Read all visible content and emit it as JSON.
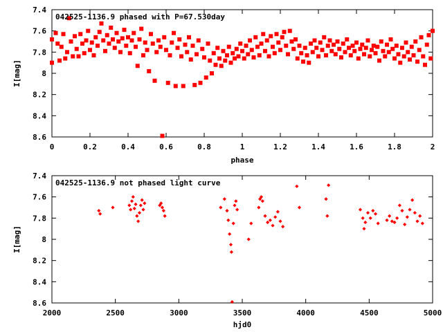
{
  "chart_data": [
    {
      "type": "scatter",
      "title": "042525-1136.9 phased with P=67.530day",
      "xlabel": "phase",
      "ylabel": "I[mag]",
      "xlim": [
        0,
        2
      ],
      "ylim": [
        8.6,
        7.4
      ],
      "y_inverted": true,
      "x_ticks": [
        "0",
        "0.2",
        "0.4",
        "0.6",
        "0.8",
        "1",
        "1.2",
        "1.4",
        "1.6",
        "1.8",
        "2"
      ],
      "x_tick_values": [
        0,
        0.2,
        0.4,
        0.6,
        0.8,
        1,
        1.2,
        1.4,
        1.6,
        1.8,
        2
      ],
      "y_ticks": [
        "7.4",
        "7.6",
        "7.8",
        "8",
        "8.2",
        "8.4",
        "8.6"
      ],
      "y_tick_values": [
        7.4,
        7.6,
        7.8,
        8.0,
        8.2,
        8.4,
        8.6
      ],
      "marker": "square",
      "color": "#ff0000",
      "points": [
        [
          0.0,
          7.68
        ],
        [
          0.0,
          7.9
        ],
        [
          0.02,
          7.62
        ],
        [
          0.03,
          7.72
        ],
        [
          0.04,
          7.88
        ],
        [
          0.05,
          7.75
        ],
        [
          0.06,
          7.63
        ],
        [
          0.07,
          7.86
        ],
        [
          0.08,
          7.8
        ],
        [
          0.09,
          7.48
        ],
        [
          0.1,
          7.7
        ],
        [
          0.11,
          7.84
        ],
        [
          0.12,
          7.65
        ],
        [
          0.13,
          7.77
        ],
        [
          0.14,
          7.84
        ],
        [
          0.15,
          7.63
        ],
        [
          0.16,
          7.72
        ],
        [
          0.17,
          7.81
        ],
        [
          0.18,
          7.69
        ],
        [
          0.19,
          7.6
        ],
        [
          0.2,
          7.78
        ],
        [
          0.21,
          7.71
        ],
        [
          0.22,
          7.83
        ],
        [
          0.23,
          7.66
        ],
        [
          0.24,
          7.74
        ],
        [
          0.25,
          7.61
        ],
        [
          0.26,
          7.53
        ],
        [
          0.27,
          7.69
        ],
        [
          0.28,
          7.79
        ],
        [
          0.29,
          7.64
        ],
        [
          0.3,
          7.72
        ],
        [
          0.31,
          7.57
        ],
        [
          0.32,
          7.68
        ],
        [
          0.33,
          7.76
        ],
        [
          0.34,
          7.62
        ],
        [
          0.35,
          7.7
        ],
        [
          0.36,
          7.8
        ],
        [
          0.37,
          7.67
        ],
        [
          0.38,
          7.59
        ],
        [
          0.39,
          7.74
        ],
        [
          0.4,
          7.66
        ],
        [
          0.41,
          7.81
        ],
        [
          0.42,
          7.69
        ],
        [
          0.43,
          7.62
        ],
        [
          0.44,
          7.75
        ],
        [
          0.45,
          7.93
        ],
        [
          0.46,
          7.68
        ],
        [
          0.47,
          7.58
        ],
        [
          0.48,
          7.83
        ],
        [
          0.49,
          7.71
        ],
        [
          0.5,
          7.78
        ],
        [
          0.51,
          7.98
        ],
        [
          0.52,
          7.63
        ],
        [
          0.53,
          7.72
        ],
        [
          0.54,
          8.07
        ],
        [
          0.55,
          7.8
        ],
        [
          0.56,
          7.69
        ],
        [
          0.57,
          7.75
        ],
        [
          0.58,
          8.59
        ],
        [
          0.59,
          7.66
        ],
        [
          0.6,
          7.78
        ],
        [
          0.61,
          8.09
        ],
        [
          0.62,
          7.83
        ],
        [
          0.63,
          7.71
        ],
        [
          0.64,
          7.62
        ],
        [
          0.65,
          8.12
        ],
        [
          0.66,
          7.76
        ],
        [
          0.67,
          7.68
        ],
        [
          0.68,
          7.84
        ],
        [
          0.69,
          8.12
        ],
        [
          0.7,
          7.73
        ],
        [
          0.71,
          7.8
        ],
        [
          0.72,
          7.66
        ],
        [
          0.73,
          7.87
        ],
        [
          0.74,
          7.74
        ],
        [
          0.75,
          8.11
        ],
        [
          0.76,
          7.82
        ],
        [
          0.77,
          7.69
        ],
        [
          0.78,
          8.09
        ],
        [
          0.79,
          7.77
        ],
        [
          0.8,
          7.85
        ],
        [
          0.81,
          8.04
        ],
        [
          0.82,
          7.72
        ],
        [
          0.83,
          7.88
        ],
        [
          0.84,
          8.0
        ],
        [
          0.85,
          7.81
        ],
        [
          0.86,
          7.92
        ],
        [
          0.87,
          7.76
        ],
        [
          0.88,
          7.86
        ],
        [
          0.89,
          7.93
        ],
        [
          0.9,
          7.79
        ],
        [
          0.91,
          7.88
        ],
        [
          0.92,
          7.83
        ],
        [
          0.93,
          7.75
        ],
        [
          0.94,
          7.9
        ],
        [
          0.95,
          7.81
        ],
        [
          0.96,
          7.86
        ],
        [
          0.97,
          7.77
        ],
        [
          0.98,
          7.84
        ],
        [
          0.99,
          7.72
        ],
        [
          1.0,
          7.79
        ],
        [
          1.01,
          7.86
        ],
        [
          1.02,
          7.74
        ],
        [
          1.03,
          7.82
        ],
        [
          1.04,
          7.69
        ],
        [
          1.05,
          7.78
        ],
        [
          1.06,
          7.85
        ],
        [
          1.07,
          7.66
        ],
        [
          1.08,
          7.75
        ],
        [
          1.09,
          7.83
        ],
        [
          1.1,
          7.72
        ],
        [
          1.11,
          7.63
        ],
        [
          1.12,
          7.79
        ],
        [
          1.13,
          7.69
        ],
        [
          1.14,
          7.84
        ],
        [
          1.15,
          7.65
        ],
        [
          1.16,
          7.75
        ],
        [
          1.17,
          7.81
        ],
        [
          1.18,
          7.63
        ],
        [
          1.19,
          7.71
        ],
        [
          1.2,
          7.78
        ],
        [
          1.21,
          7.66
        ],
        [
          1.22,
          7.61
        ],
        [
          1.23,
          7.74
        ],
        [
          1.24,
          7.82
        ],
        [
          1.25,
          7.6
        ],
        [
          1.26,
          7.7
        ],
        [
          1.27,
          7.77
        ],
        [
          1.28,
          7.68
        ],
        [
          1.29,
          7.86
        ],
        [
          1.3,
          7.74
        ],
        [
          1.31,
          7.81
        ],
        [
          1.32,
          7.89
        ],
        [
          1.33,
          7.76
        ],
        [
          1.34,
          7.83
        ],
        [
          1.35,
          7.9
        ],
        [
          1.36,
          7.72
        ],
        [
          1.37,
          7.8
        ],
        [
          1.38,
          7.69
        ],
        [
          1.39,
          7.76
        ],
        [
          1.4,
          7.84
        ],
        [
          1.41,
          7.71
        ],
        [
          1.42,
          7.78
        ],
        [
          1.43,
          7.66
        ],
        [
          1.44,
          7.83
        ],
        [
          1.45,
          7.74
        ],
        [
          1.46,
          7.69
        ],
        [
          1.47,
          7.79
        ],
        [
          1.48,
          7.73
        ],
        [
          1.49,
          7.82
        ],
        [
          1.5,
          7.7
        ],
        [
          1.51,
          7.77
        ],
        [
          1.52,
          7.85
        ],
        [
          1.53,
          7.72
        ],
        [
          1.54,
          7.8
        ],
        [
          1.55,
          7.68
        ],
        [
          1.56,
          7.76
        ],
        [
          1.57,
          7.83
        ],
        [
          1.58,
          7.74
        ],
        [
          1.59,
          7.79
        ],
        [
          1.6,
          7.71
        ],
        [
          1.61,
          7.86
        ],
        [
          1.62,
          7.77
        ],
        [
          1.63,
          7.73
        ],
        [
          1.64,
          7.82
        ],
        [
          1.65,
          7.76
        ],
        [
          1.66,
          7.69
        ],
        [
          1.67,
          7.84
        ],
        [
          1.68,
          7.78
        ],
        [
          1.69,
          7.74
        ],
        [
          1.7,
          7.81
        ],
        [
          1.71,
          7.75
        ],
        [
          1.72,
          7.88
        ],
        [
          1.73,
          7.7
        ],
        [
          1.74,
          7.79
        ],
        [
          1.75,
          7.84
        ],
        [
          1.76,
          7.73
        ],
        [
          1.77,
          7.8
        ],
        [
          1.78,
          7.68
        ],
        [
          1.79,
          7.77
        ],
        [
          1.8,
          7.86
        ],
        [
          1.81,
          7.74
        ],
        [
          1.82,
          7.82
        ],
        [
          1.83,
          7.9
        ],
        [
          1.84,
          7.76
        ],
        [
          1.85,
          7.84
        ],
        [
          1.86,
          7.71
        ],
        [
          1.87,
          7.8
        ],
        [
          1.88,
          7.87
        ],
        [
          1.89,
          7.75
        ],
        [
          1.9,
          7.83
        ],
        [
          1.91,
          7.7
        ],
        [
          1.92,
          7.89
        ],
        [
          1.93,
          7.78
        ],
        [
          1.94,
          7.66
        ],
        [
          1.95,
          7.84
        ],
        [
          1.96,
          7.92
        ],
        [
          1.97,
          7.73
        ],
        [
          1.98,
          7.64
        ],
        [
          1.99,
          7.86
        ],
        [
          2.0,
          7.6
        ]
      ]
    },
    {
      "type": "scatter",
      "title": "042525-1136.9 not phased light curve",
      "xlabel": "hjd0",
      "ylabel": "I[mag]",
      "xlim": [
        2000,
        5000
      ],
      "ylim": [
        8.6,
        7.4
      ],
      "y_inverted": true,
      "x_ticks": [
        "2000",
        "2500",
        "3000",
        "3500",
        "4000",
        "4500",
        "5000"
      ],
      "x_tick_values": [
        2000,
        2500,
        3000,
        3500,
        4000,
        4500,
        5000
      ],
      "y_ticks": [
        "7.4",
        "7.6",
        "7.8",
        "8",
        "8.2",
        "8.4",
        "8.6"
      ],
      "y_tick_values": [
        7.4,
        7.6,
        7.8,
        8.0,
        8.2,
        8.4,
        8.6
      ],
      "marker": "diamond",
      "color": "#ff0000",
      "points": [
        [
          2370,
          7.73
        ],
        [
          2380,
          7.76
        ],
        [
          2480,
          7.7
        ],
        [
          2610,
          7.68
        ],
        [
          2620,
          7.72
        ],
        [
          2630,
          7.64
        ],
        [
          2640,
          7.6
        ],
        [
          2650,
          7.71
        ],
        [
          2660,
          7.67
        ],
        [
          2670,
          7.78
        ],
        [
          2680,
          7.83
        ],
        [
          2690,
          7.75
        ],
        [
          2700,
          7.68
        ],
        [
          2710,
          7.63
        ],
        [
          2720,
          7.72
        ],
        [
          2730,
          7.66
        ],
        [
          2850,
          7.68
        ],
        [
          2860,
          7.66
        ],
        [
          2870,
          7.7
        ],
        [
          2880,
          7.73
        ],
        [
          2890,
          7.78
        ],
        [
          3330,
          7.7
        ],
        [
          3360,
          7.62
        ],
        [
          3380,
          7.73
        ],
        [
          3390,
          7.82
        ],
        [
          3400,
          7.95
        ],
        [
          3410,
          8.05
        ],
        [
          3415,
          8.12
        ],
        [
          3420,
          8.59
        ],
        [
          3430,
          7.85
        ],
        [
          3440,
          7.68
        ],
        [
          3450,
          7.64
        ],
        [
          3460,
          7.72
        ],
        [
          3550,
          8.0
        ],
        [
          3570,
          7.85
        ],
        [
          3630,
          7.7
        ],
        [
          3640,
          7.62
        ],
        [
          3650,
          7.6
        ],
        [
          3660,
          7.64
        ],
        [
          3680,
          7.78
        ],
        [
          3700,
          7.84
        ],
        [
          3720,
          7.82
        ],
        [
          3740,
          7.87
        ],
        [
          3760,
          7.79
        ],
        [
          3780,
          7.74
        ],
        [
          3800,
          7.83
        ],
        [
          3820,
          7.88
        ],
        [
          3930,
          7.5
        ],
        [
          3950,
          7.7
        ],
        [
          4160,
          7.62
        ],
        [
          4170,
          7.78
        ],
        [
          4180,
          7.49
        ],
        [
          4430,
          7.72
        ],
        [
          4450,
          7.8
        ],
        [
          4460,
          7.9
        ],
        [
          4470,
          7.84
        ],
        [
          4490,
          7.75
        ],
        [
          4510,
          7.8
        ],
        [
          4530,
          7.73
        ],
        [
          4550,
          7.76
        ],
        [
          4570,
          7.85
        ],
        [
          4640,
          7.82
        ],
        [
          4660,
          7.78
        ],
        [
          4680,
          7.83
        ],
        [
          4700,
          7.84
        ],
        [
          4720,
          7.8
        ],
        [
          4740,
          7.68
        ],
        [
          4760,
          7.73
        ],
        [
          4780,
          7.86
        ],
        [
          4800,
          7.79
        ],
        [
          4820,
          7.72
        ],
        [
          4840,
          7.63
        ],
        [
          4860,
          7.75
        ],
        [
          4880,
          7.83
        ],
        [
          4900,
          7.78
        ],
        [
          4920,
          7.85
        ]
      ]
    }
  ]
}
